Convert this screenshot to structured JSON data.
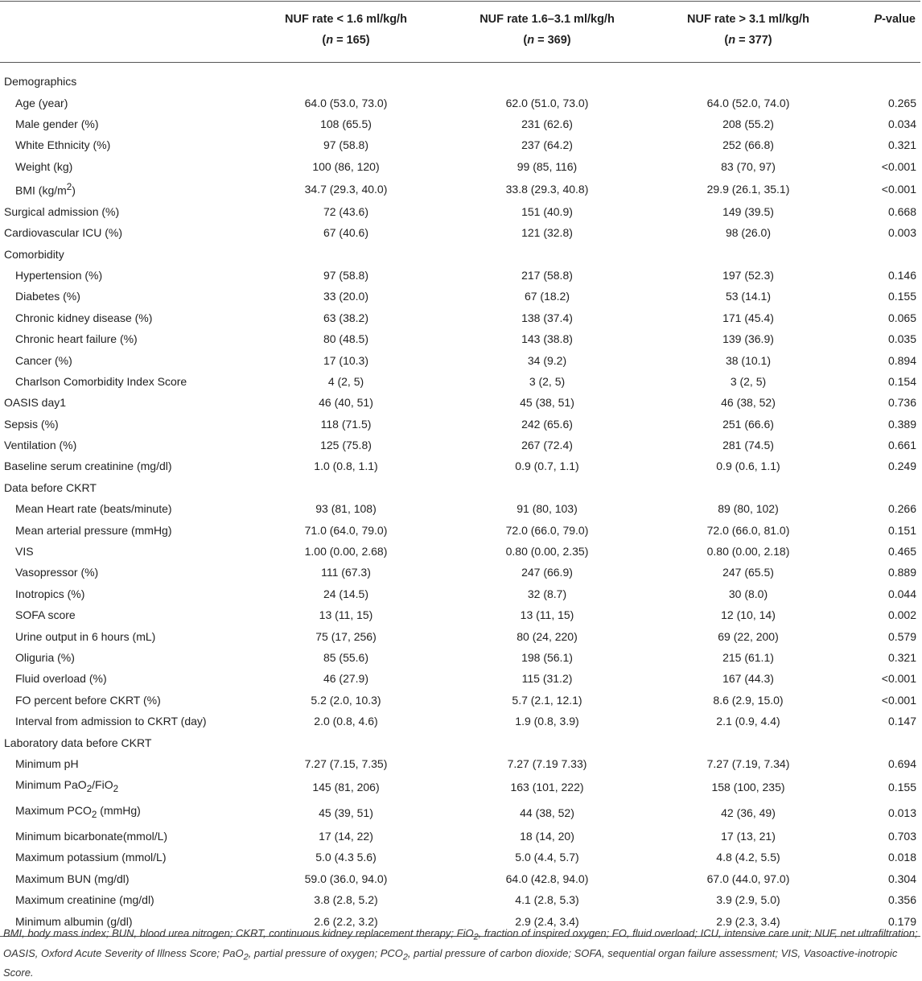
{
  "headers": {
    "group1": {
      "line1": "NUF rate < 1.6 ml/kg/h",
      "n_label": "n",
      "n_value": " = 165"
    },
    "group2": {
      "line1": "NUF rate 1.6–3.1 ml/kg/h",
      "n_label": "n",
      "n_value": " = 369"
    },
    "group3": {
      "line1": "NUF rate > 3.1 ml/kg/h",
      "n_label": "n",
      "n_value": " = 377"
    },
    "pvalue": {
      "italic": "P",
      "rest": "-value"
    }
  },
  "rows": [
    {
      "label": "Demographics",
      "section": true
    },
    {
      "label": "Age (year)",
      "g1": "64.0 (53.0, 73.0)",
      "g2": "62.0 (51.0, 73.0)",
      "g3": "64.0 (52.0, 74.0)",
      "p": "0.265"
    },
    {
      "label": "Male gender (%)",
      "g1": "108 (65.5)",
      "g2": "231 (62.6)",
      "g3": "208 (55.2)",
      "p": "0.034"
    },
    {
      "label": "White Ethnicity (%)",
      "g1": "97 (58.8)",
      "g2": "237 (64.2)",
      "g3": "252 (66.8)",
      "p": "0.321"
    },
    {
      "label": "Weight (kg)",
      "g1": "100 (86, 120)",
      "g2": "99 (85, 116)",
      "g3": "83 (70, 97)",
      "p": "<0.001"
    },
    {
      "label": "BMI (kg/m",
      "sup": "2",
      "after": ")",
      "g1": "34.7 (29.3, 40.0)",
      "g2": "33.8 (29.3, 40.8)",
      "g3": "29.9 (26.1, 35.1)",
      "p": "<0.001"
    },
    {
      "label": "Surgical admission (%)",
      "top": true,
      "g1": "72 (43.6)",
      "g2": "151 (40.9)",
      "g3": "149 (39.5)",
      "p": "0.668"
    },
    {
      "label": "Cardiovascular ICU (%)",
      "top": true,
      "g1": "67 (40.6)",
      "g2": "121 (32.8)",
      "g3": "98 (26.0)",
      "p": "0.003"
    },
    {
      "label": "Comorbidity",
      "section": true
    },
    {
      "label": "Hypertension (%)",
      "g1": "97 (58.8)",
      "g2": "217 (58.8)",
      "g3": "197 (52.3)",
      "p": "0.146"
    },
    {
      "label": "Diabetes (%)",
      "g1": "33 (20.0)",
      "g2": "67 (18.2)",
      "g3": "53 (14.1)",
      "p": "0.155"
    },
    {
      "label": "Chronic kidney disease (%)",
      "g1": "63 (38.2)",
      "g2": "138 (37.4)",
      "g3": "171 (45.4)",
      "p": "0.065"
    },
    {
      "label": "Chronic heart failure (%)",
      "g1": "80 (48.5)",
      "g2": "143 (38.8)",
      "g3": "139 (36.9)",
      "p": "0.035"
    },
    {
      "label": "Cancer (%)",
      "g1": "17 (10.3)",
      "g2": "34 (9.2)",
      "g3": "38 (10.1)",
      "p": "0.894"
    },
    {
      "label": "Charlson Comorbidity Index Score",
      "g1": "4 (2, 5)",
      "g2": "3 (2, 5)",
      "g3": "3 (2, 5)",
      "p": "0.154"
    },
    {
      "label": "OASIS day1",
      "top": true,
      "g1": "46 (40, 51)",
      "g2": "45 (38, 51)",
      "g3": "46 (38, 52)",
      "p": "0.736"
    },
    {
      "label": "Sepsis (%)",
      "top": true,
      "g1": "118 (71.5)",
      "g2": "242 (65.6)",
      "g3": "251 (66.6)",
      "p": "0.389"
    },
    {
      "label": "Ventilation (%)",
      "top": true,
      "g1": "125 (75.8)",
      "g2": "267 (72.4)",
      "g3": "281 (74.5)",
      "p": "0.661"
    },
    {
      "label": "Baseline serum creatinine (mg/dl)",
      "top": true,
      "g1": "1.0 (0.8, 1.1)",
      "g2": "0.9 (0.7, 1.1)",
      "g3": "0.9 (0.6, 1.1)",
      "p": "0.249"
    },
    {
      "label": "Data before CKRT",
      "section": true
    },
    {
      "label": "Mean Heart rate (beats/minute)",
      "g1": "93 (81, 108)",
      "g2": "91 (80, 103)",
      "g3": "89 (80, 102)",
      "p": "0.266"
    },
    {
      "label": "Mean arterial pressure (mmHg)",
      "g1": "71.0 (64.0, 79.0)",
      "g2": "72.0 (66.0, 79.0)",
      "g3": "72.0 (66.0, 81.0)",
      "p": "0.151"
    },
    {
      "label": "VIS",
      "g1": "1.00 (0.00, 2.68)",
      "g2": "0.80 (0.00, 2.35)",
      "g3": "0.80 (0.00, 2.18)",
      "p": "0.465"
    },
    {
      "label": "Vasopressor (%)",
      "g1": "111 (67.3)",
      "g2": "247 (66.9)",
      "g3": "247 (65.5)",
      "p": "0.889"
    },
    {
      "label": "Inotropics (%)",
      "g1": "24 (14.5)",
      "g2": "32 (8.7)",
      "g3": "30 (8.0)",
      "p": "0.044"
    },
    {
      "label": "SOFA score",
      "g1": "13 (11, 15)",
      "g2": "13 (11, 15)",
      "g3": "12 (10, 14)",
      "p": "0.002"
    },
    {
      "label": "Urine output in 6 hours (mL)",
      "g1": "75 (17, 256)",
      "g2": "80 (24, 220)",
      "g3": "69 (22, 200)",
      "p": "0.579"
    },
    {
      "label": "Oliguria (%)",
      "g1": "85 (55.6)",
      "g2": "198 (56.1)",
      "g3": "215 (61.1)",
      "p": "0.321"
    },
    {
      "label": "Fluid overload (%)",
      "g1": "46 (27.9)",
      "g2": "115 (31.2)",
      "g3": "167 (44.3)",
      "p": "<0.001"
    },
    {
      "label": "FO percent before CKRT (%)",
      "g1": "5.2 (2.0, 10.3)",
      "g2": "5.7 (2.1, 12.1)",
      "g3": "8.6 (2.9, 15.0)",
      "p": "<0.001"
    },
    {
      "label": "Interval from admission to CKRT (day)",
      "g1": "2.0 (0.8, 4.6)",
      "g2": "1.9 (0.8, 3.9)",
      "g3": "2.1 (0.9, 4.4)",
      "p": "0.147"
    },
    {
      "label": "Laboratory data before CKRT",
      "section": true
    },
    {
      "label": "Minimum pH",
      "g1": "7.27 (7.15, 7.35)",
      "g2": "7.27 (7.19 7.33)",
      "g3": "7.27 (7.19, 7.34)",
      "p": "0.694"
    },
    {
      "label": "Minimum PaO",
      "sub": "2",
      "mid": "/FiO",
      "sub2": "2",
      "g1": "145 (81, 206)",
      "g2": "163 (101, 222)",
      "g3": "158 (100, 235)",
      "p": "0.155"
    },
    {
      "label": "Maximum PCO",
      "sub": "2",
      "after": " (mmHg)",
      "g1": "45 (39, 51)",
      "g2": "44 (38, 52)",
      "g3": "42 (36, 49)",
      "p": "0.013"
    },
    {
      "label": "Minimum bicarbonate(mmol/L)",
      "g1": "17 (14, 22)",
      "g2": "18 (14, 20)",
      "g3": "17 (13, 21)",
      "p": "0.703"
    },
    {
      "label": "Maximum potassium (mmol/L)",
      "g1": "5.0 (4.3 5.6)",
      "g2": "5.0 (4.4, 5.7)",
      "g3": "4.8 (4.2, 5.5)",
      "p": "0.018"
    },
    {
      "label": "Maximum BUN (mg/dl)",
      "g1": "59.0 (36.0, 94.0)",
      "g2": "64.0 (42.8, 94.0)",
      "g3": "67.0 (44.0, 97.0)",
      "p": "0.304"
    },
    {
      "label": "Maximum creatinine (mg/dl)",
      "g1": "3.8 (2.8, 5.2)",
      "g2": "4.1 (2.8, 5.3)",
      "g3": "3.9 (2.9, 5.0)",
      "p": "0.356"
    },
    {
      "label": "Minimum albumin (g/dl)",
      "g1": "2.6 (2.2, 3.2)",
      "g2": "2.9 (2.4, 3.4)",
      "g3": "2.9 (2.3, 3.4)",
      "p": "0.179"
    }
  ],
  "footnote": {
    "part1": "BMI, body mass index; BUN, blood urea nitrogen; CKRT, continuous kidney replacement therapy; FiO",
    "sub1": "2",
    "part2": ", fraction of inspired oxygen; FO, fluid overload; ICU, intensive care unit; NUF, net ultrafiltration; OASIS, Oxford Acute Severity of Illness Score; PaO",
    "sub2": "2",
    "part3": ", partial pressure of oxygen; PCO",
    "sub3": "2",
    "part4": ", partial pressure of carbon dioxide; SOFA, sequential organ failure assessment; VIS, Vasoactive-inotropic Score."
  }
}
